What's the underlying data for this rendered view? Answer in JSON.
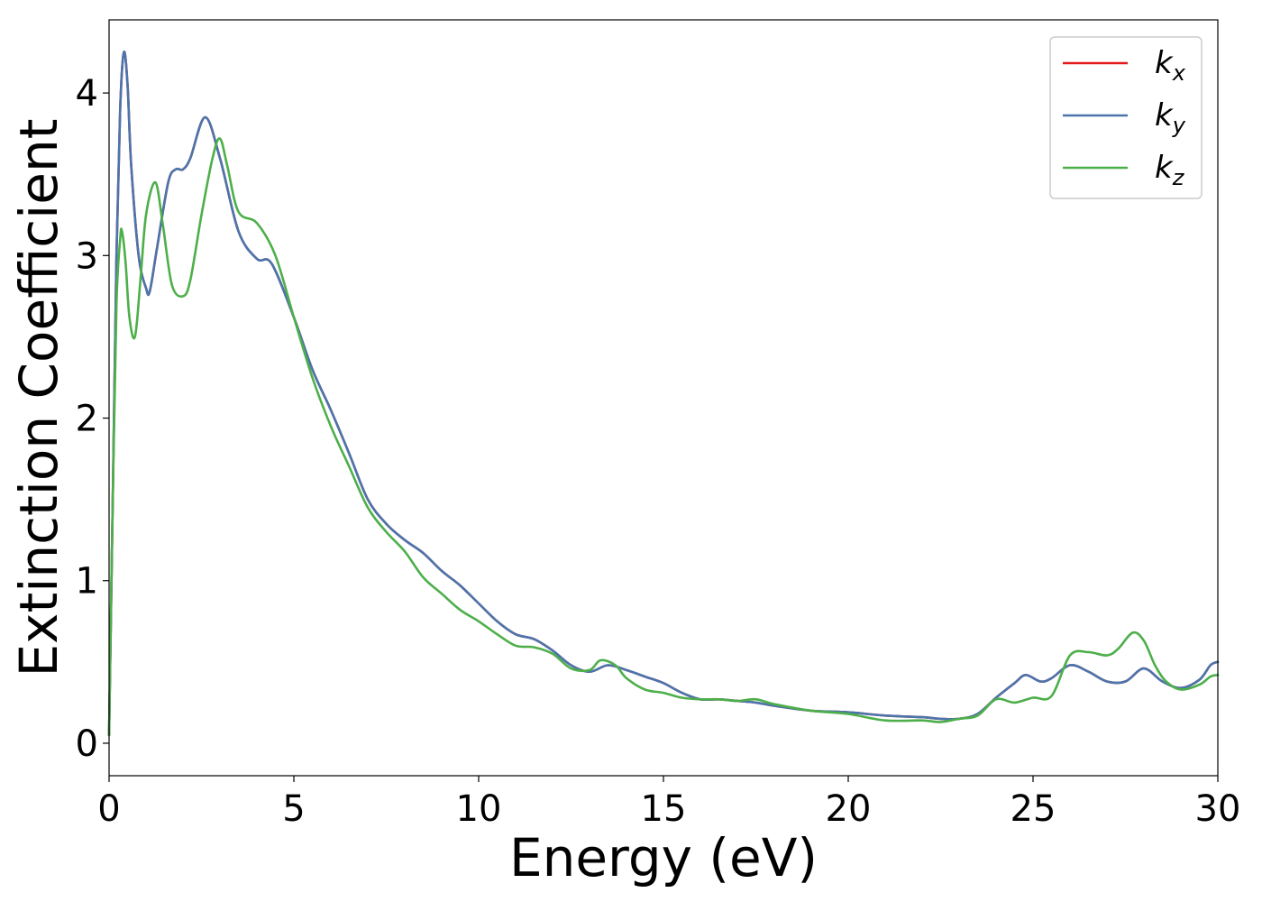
{
  "chart_data": {
    "type": "line",
    "xlabel": "Energy (eV)",
    "ylabel": "Extinction Coefficient",
    "xlim": [
      0,
      30
    ],
    "ylim": [
      -0.2,
      4.45
    ],
    "xticks": [
      0,
      5,
      10,
      15,
      20,
      25,
      30
    ],
    "xtick_labels": [
      "0",
      "5",
      "10",
      "15",
      "20",
      "25",
      "30"
    ],
    "yticks": [
      0,
      1,
      2,
      3,
      4
    ],
    "ytick_labels": [
      "0",
      "1",
      "2",
      "3",
      "4"
    ],
    "grid": false,
    "legend_position": "top-right",
    "series": [
      {
        "name": "k_x",
        "legend_base": "k",
        "legend_sub": "x",
        "color": "#e41a1c",
        "x": [
          0,
          0.1,
          0.2,
          0.3,
          0.4,
          0.5,
          0.6,
          0.8,
          1.0,
          1.1,
          1.3,
          1.6,
          1.8,
          2.0,
          2.2,
          2.6,
          3.0,
          3.5,
          4.0,
          4.4,
          5.0,
          5.5,
          6.0,
          6.5,
          7.0,
          7.5,
          8.0,
          8.5,
          9.0,
          9.5,
          10.0,
          10.5,
          11.0,
          11.5,
          12.0,
          12.5,
          13.0,
          13.5,
          14.0,
          14.5,
          15.0,
          15.5,
          16.0,
          16.5,
          17.0,
          17.5,
          18.0,
          19.0,
          20.0,
          21.0,
          22.0,
          22.5,
          23.0,
          23.5,
          24.0,
          24.5,
          24.8,
          25.2,
          25.5,
          26.0,
          26.5,
          27.0,
          27.5,
          28.0,
          28.5,
          29.0,
          29.5,
          29.8,
          30.0
        ],
        "y": [
          0.05,
          1.5,
          3.0,
          3.9,
          4.25,
          4.05,
          3.55,
          3.0,
          2.8,
          2.78,
          3.05,
          3.45,
          3.53,
          3.53,
          3.6,
          3.85,
          3.6,
          3.15,
          2.98,
          2.95,
          2.62,
          2.3,
          2.05,
          1.78,
          1.5,
          1.35,
          1.25,
          1.17,
          1.06,
          0.97,
          0.86,
          0.75,
          0.67,
          0.64,
          0.57,
          0.48,
          0.44,
          0.48,
          0.45,
          0.41,
          0.37,
          0.31,
          0.27,
          0.27,
          0.26,
          0.25,
          0.23,
          0.2,
          0.19,
          0.17,
          0.16,
          0.15,
          0.15,
          0.18,
          0.28,
          0.37,
          0.42,
          0.38,
          0.4,
          0.48,
          0.44,
          0.38,
          0.38,
          0.46,
          0.38,
          0.34,
          0.39,
          0.48,
          0.5
        ]
      },
      {
        "name": "k_y",
        "legend_base": "k",
        "legend_sub": "y",
        "color": "#4a75ad",
        "x": [
          0,
          0.1,
          0.2,
          0.3,
          0.4,
          0.5,
          0.6,
          0.8,
          1.0,
          1.1,
          1.3,
          1.6,
          1.8,
          2.0,
          2.2,
          2.6,
          3.0,
          3.5,
          4.0,
          4.4,
          5.0,
          5.5,
          6.0,
          6.5,
          7.0,
          7.5,
          8.0,
          8.5,
          9.0,
          9.5,
          10.0,
          10.5,
          11.0,
          11.5,
          12.0,
          12.5,
          13.0,
          13.5,
          14.0,
          14.5,
          15.0,
          15.5,
          16.0,
          16.5,
          17.0,
          17.5,
          18.0,
          19.0,
          20.0,
          21.0,
          22.0,
          22.5,
          23.0,
          23.5,
          24.0,
          24.5,
          24.8,
          25.2,
          25.5,
          26.0,
          26.5,
          27.0,
          27.5,
          28.0,
          28.5,
          29.0,
          29.5,
          29.8,
          30.0
        ],
        "y": [
          0.05,
          1.5,
          3.0,
          3.9,
          4.25,
          4.05,
          3.55,
          3.0,
          2.8,
          2.78,
          3.05,
          3.45,
          3.53,
          3.53,
          3.6,
          3.85,
          3.6,
          3.15,
          2.98,
          2.95,
          2.62,
          2.3,
          2.05,
          1.78,
          1.5,
          1.35,
          1.25,
          1.17,
          1.06,
          0.97,
          0.86,
          0.75,
          0.67,
          0.64,
          0.57,
          0.48,
          0.44,
          0.48,
          0.45,
          0.41,
          0.37,
          0.31,
          0.27,
          0.27,
          0.26,
          0.25,
          0.23,
          0.2,
          0.19,
          0.17,
          0.16,
          0.15,
          0.15,
          0.18,
          0.28,
          0.37,
          0.42,
          0.38,
          0.4,
          0.48,
          0.44,
          0.38,
          0.38,
          0.46,
          0.38,
          0.34,
          0.39,
          0.48,
          0.5
        ]
      },
      {
        "name": "k_z",
        "legend_base": "k",
        "legend_sub": "z",
        "color": "#4daf4a",
        "x": [
          0,
          0.1,
          0.2,
          0.3,
          0.35,
          0.45,
          0.55,
          0.7,
          0.85,
          1.0,
          1.25,
          1.45,
          1.7,
          2.0,
          2.2,
          2.5,
          2.8,
          3.0,
          3.2,
          3.5,
          4.0,
          4.5,
          5.0,
          5.5,
          6.0,
          6.5,
          7.0,
          7.5,
          8.0,
          8.5,
          9.0,
          9.5,
          10.0,
          10.5,
          11.0,
          11.5,
          12.0,
          12.5,
          13.0,
          13.3,
          13.7,
          14.0,
          14.5,
          15.0,
          15.5,
          16.0,
          16.5,
          17.0,
          17.5,
          18.0,
          19.0,
          20.0,
          21.0,
          22.0,
          22.5,
          23.0,
          23.5,
          24.0,
          24.5,
          25.0,
          25.5,
          26.0,
          26.5,
          27.0,
          27.3,
          27.7,
          28.0,
          28.3,
          28.6,
          29.0,
          29.5,
          29.8,
          30.0
        ],
        "y": [
          0.05,
          1.5,
          2.7,
          3.1,
          3.15,
          2.95,
          2.62,
          2.5,
          2.85,
          3.25,
          3.45,
          3.2,
          2.82,
          2.75,
          2.85,
          3.25,
          3.6,
          3.72,
          3.55,
          3.27,
          3.2,
          3.0,
          2.62,
          2.25,
          1.95,
          1.7,
          1.45,
          1.3,
          1.18,
          1.02,
          0.92,
          0.82,
          0.75,
          0.67,
          0.6,
          0.59,
          0.55,
          0.46,
          0.45,
          0.51,
          0.48,
          0.4,
          0.33,
          0.31,
          0.28,
          0.27,
          0.27,
          0.26,
          0.27,
          0.24,
          0.2,
          0.18,
          0.14,
          0.14,
          0.13,
          0.15,
          0.17,
          0.27,
          0.25,
          0.28,
          0.29,
          0.54,
          0.56,
          0.54,
          0.58,
          0.68,
          0.63,
          0.48,
          0.38,
          0.33,
          0.36,
          0.41,
          0.42
        ]
      }
    ]
  }
}
